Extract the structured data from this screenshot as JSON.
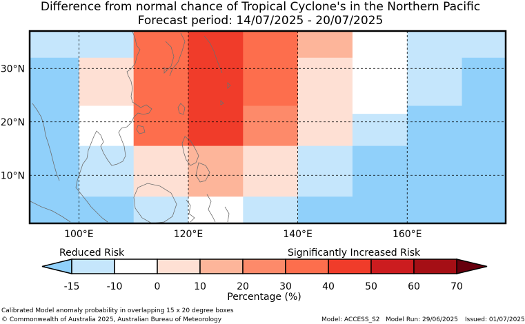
{
  "title": {
    "line1": "Difference from normal chance of Tropical Cyclone's in the Northern Pacific",
    "line2": "Forecast period: 14/07/2025 - 20/07/2025"
  },
  "axes": {
    "lon_labels": [
      "100°E",
      "120°E",
      "140°E",
      "160°E"
    ],
    "lat_labels": [
      "30°N",
      "20°N",
      "10°N"
    ]
  },
  "map_grid": {
    "lon_range": [
      91,
      178
    ],
    "lat_range": [
      1,
      37
    ],
    "cell_columns_lon": [
      91,
      100,
      110,
      120,
      130,
      140,
      150,
      160,
      170,
      178
    ],
    "blocks": [
      {
        "lon": [
          91,
          100
        ],
        "lat": [
          32,
          37
        ],
        "color": "#c5e6fc"
      },
      {
        "lon": [
          91,
          100
        ],
        "lat": [
          1,
          32
        ],
        "color": "#90d0fa"
      },
      {
        "lon": [
          100,
          110
        ],
        "lat": [
          32,
          37
        ],
        "color": "#c5e6fc"
      },
      {
        "lon": [
          100,
          110
        ],
        "lat": [
          23,
          32
        ],
        "color": "#fee0d4"
      },
      {
        "lon": [
          100,
          110
        ],
        "lat": [
          15.5,
          23
        ],
        "color": "#ffffff"
      },
      {
        "lon": [
          100,
          110
        ],
        "lat": [
          6,
          15.5
        ],
        "color": "#c5e6fc"
      },
      {
        "lon": [
          100,
          110
        ],
        "lat": [
          1,
          6
        ],
        "color": "#90d0fa"
      },
      {
        "lon": [
          110,
          120
        ],
        "lat": [
          23,
          37
        ],
        "color": "#fd6e4d"
      },
      {
        "lon": [
          110,
          120
        ],
        "lat": [
          15.5,
          23
        ],
        "color": "#fd6e4d"
      },
      {
        "lon": [
          110,
          120
        ],
        "lat": [
          6,
          15.5
        ],
        "color": "#fee0d4"
      },
      {
        "lon": [
          110,
          120
        ],
        "lat": [
          1,
          6
        ],
        "color": "#c5e6fc"
      },
      {
        "lon": [
          120,
          130
        ],
        "lat": [
          15.5,
          37
        ],
        "color": "#f03c2a"
      },
      {
        "lon": [
          120,
          130
        ],
        "lat": [
          6,
          15.5
        ],
        "color": "#fdb59a"
      },
      {
        "lon": [
          120,
          130
        ],
        "lat": [
          1,
          6
        ],
        "color": "#ffffff"
      },
      {
        "lon": [
          130,
          140
        ],
        "lat": [
          23,
          37
        ],
        "color": "#fd6e4d"
      },
      {
        "lon": [
          130,
          140
        ],
        "lat": [
          15.5,
          23
        ],
        "color": "#fd8a6a"
      },
      {
        "lon": [
          130,
          140
        ],
        "lat": [
          6,
          15.5
        ],
        "color": "#fee0d4"
      },
      {
        "lon": [
          130,
          140
        ],
        "lat": [
          1,
          6
        ],
        "color": "#c5e6fc"
      },
      {
        "lon": [
          140,
          150
        ],
        "lat": [
          32,
          37
        ],
        "color": "#fdb59a"
      },
      {
        "lon": [
          140,
          150
        ],
        "lat": [
          15.5,
          32
        ],
        "color": "#fee0d4"
      },
      {
        "lon": [
          140,
          150
        ],
        "lat": [
          6,
          15.5
        ],
        "color": "#c5e6fc"
      },
      {
        "lon": [
          140,
          150
        ],
        "lat": [
          1,
          6
        ],
        "color": "#90d0fa"
      },
      {
        "lon": [
          150,
          160
        ],
        "lat": [
          21.5,
          37
        ],
        "color": "#ffffff"
      },
      {
        "lon": [
          150,
          160
        ],
        "lat": [
          15.5,
          21.5
        ],
        "color": "#c5e6fc"
      },
      {
        "lon": [
          150,
          160
        ],
        "lat": [
          1,
          15.5
        ],
        "color": "#90d0fa"
      },
      {
        "lon": [
          160,
          170
        ],
        "lat": [
          32,
          37
        ],
        "color": "#c5e6fc"
      },
      {
        "lon": [
          160,
          170
        ],
        "lat": [
          23,
          32
        ],
        "color": "#c5e6fc"
      },
      {
        "lon": [
          160,
          170
        ],
        "lat": [
          1,
          23
        ],
        "color": "#90d0fa"
      },
      {
        "lon": [
          170,
          178
        ],
        "lat": [
          32,
          37
        ],
        "color": "#c5e6fc"
      },
      {
        "lon": [
          170,
          178
        ],
        "lat": [
          1,
          32
        ],
        "color": "#90d0fa"
      }
    ]
  },
  "colorbar": {
    "reduced_label": "Reduced Risk",
    "increased_label": "Significantly Increased Risk",
    "tick_labels": [
      "-15",
      "-10",
      "0",
      "10",
      "20",
      "30",
      "40",
      "50",
      "60",
      "70"
    ],
    "colors": [
      "#c5e6fc",
      "#ffffff",
      "#fee0d4",
      "#fdb59a",
      "#fd8a6a",
      "#fd6e4d",
      "#f03c2a",
      "#cc1c1f",
      "#a50f15"
    ],
    "under_color": "#90d0fa",
    "over_color": "#67000d",
    "axis_label": "Percentage (%)"
  },
  "footer": {
    "description": "Calibrated Model anomaly probability in overlapping 15 x 20 degree boxes",
    "copyright": "© Commonwealth of Australia 2025, Australian Bureau of Meteorology",
    "model": "Model: ACCESS_S2",
    "model_run": "Model Run: 29/06/2025",
    "issued": "Issued: 01/07/2025"
  }
}
